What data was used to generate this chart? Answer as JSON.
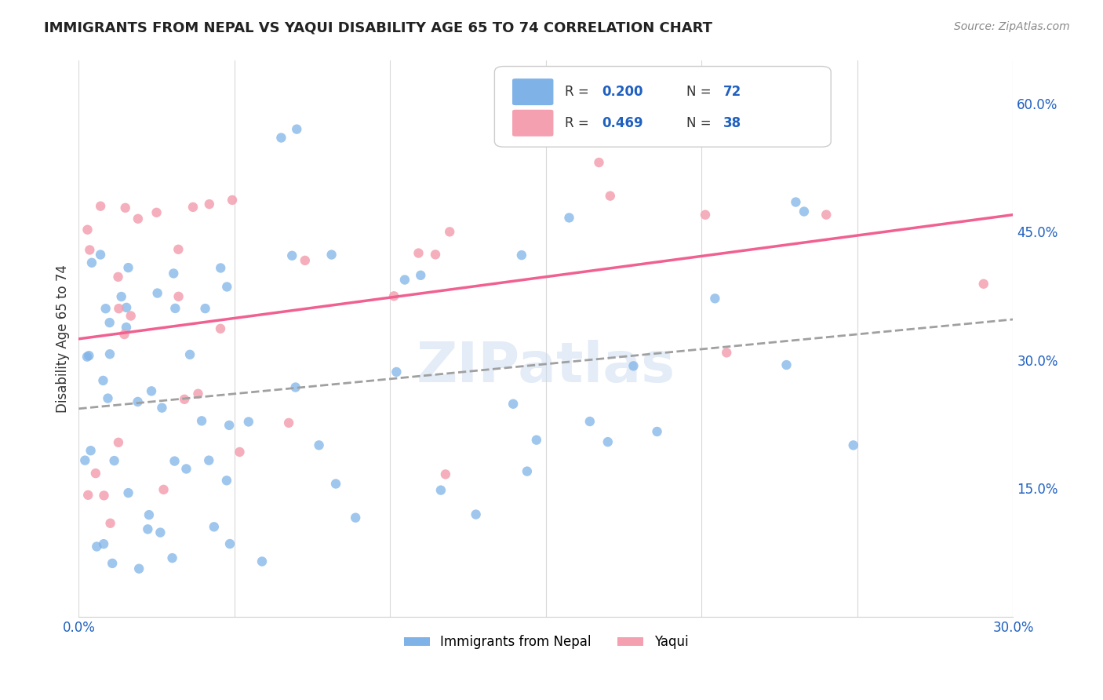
{
  "title": "IMMIGRANTS FROM NEPAL VS YAQUI DISABILITY AGE 65 TO 74 CORRELATION CHART",
  "source": "Source: ZipAtlas.com",
  "ylabel_label": "Disability Age 65 to 74",
  "xlim": [
    0.0,
    0.3
  ],
  "ylim": [
    0.0,
    0.65
  ],
  "x_tick_positions": [
    0.0,
    0.05,
    0.1,
    0.15,
    0.2,
    0.25,
    0.3
  ],
  "x_tick_labels": [
    "0.0%",
    "",
    "",
    "",
    "",
    "",
    "30.0%"
  ],
  "y_tick_positions": [
    0.0,
    0.15,
    0.3,
    0.45,
    0.6
  ],
  "y_tick_labels": [
    "",
    "15.0%",
    "30.0%",
    "45.0%",
    "60.0%"
  ],
  "watermark": "ZIPatlas",
  "legend_r1": "0.200",
  "legend_n1": "72",
  "legend_r2": "0.469",
  "legend_n2": "38",
  "color_nepal": "#7fb3e8",
  "color_yaqui": "#f4a0b0",
  "color_nepal_line": "#5b9bd5",
  "color_yaqui_line": "#f06090",
  "color_dashed_line": "#a0a0a0",
  "background": "#ffffff",
  "grid_color": "#d0d0d0",
  "label_color": "#2060c0",
  "legend_label1": "Immigrants from Nepal",
  "legend_label2": "Yaqui"
}
